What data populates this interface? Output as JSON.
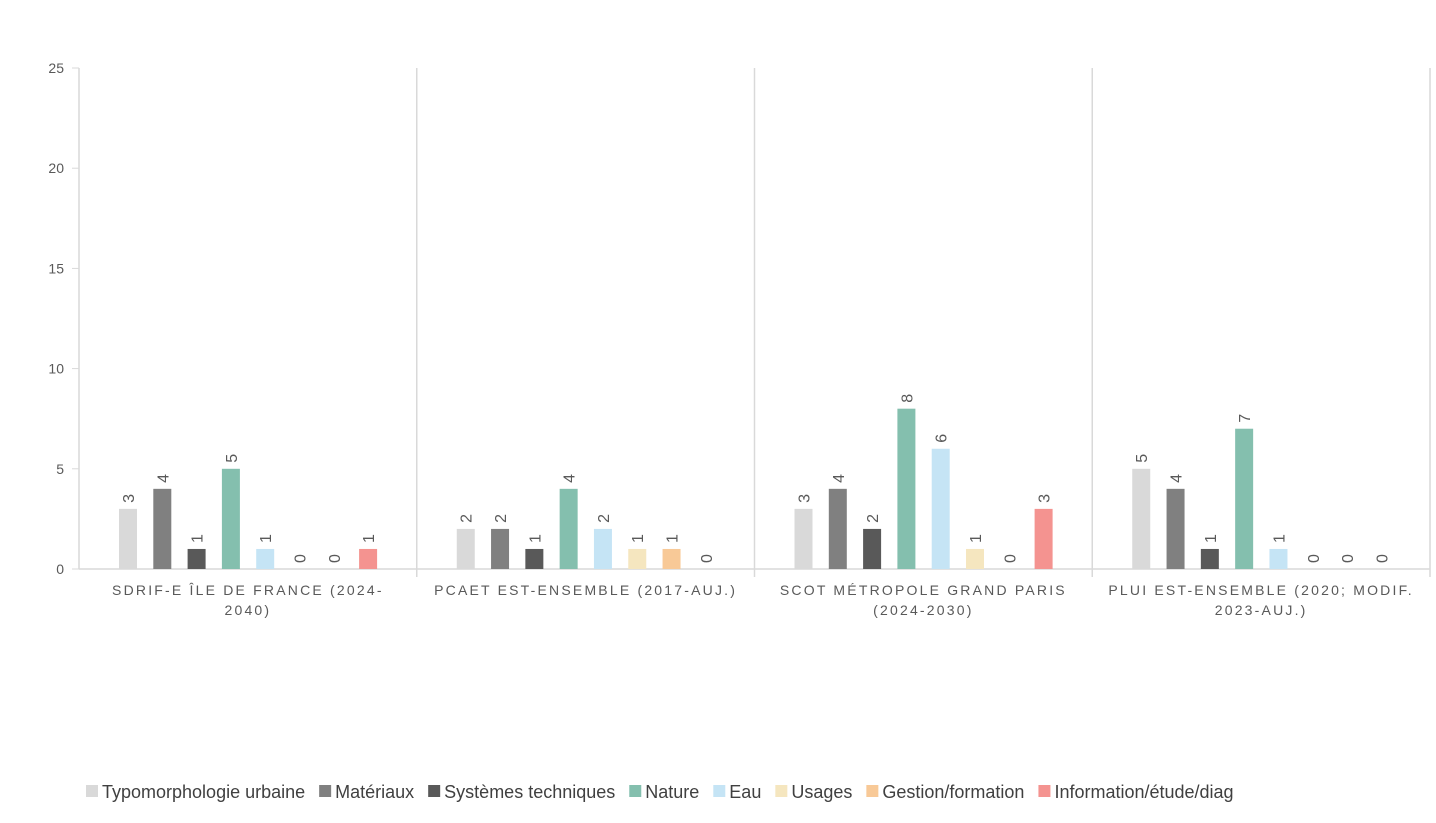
{
  "chart_data": {
    "type": "bar",
    "categories": [
      [
        "SDRIF-E ÎLE DE FRANCE (2024-",
        "2040)"
      ],
      [
        "PCAET EST-ENSEMBLE (2017-AUJ.)"
      ],
      [
        "SCOT MÉTROPOLE GRAND PARIS",
        "(2024-2030)"
      ],
      [
        "PLUI EST-ENSEMBLE (2020; MODIF.",
        "2023-AUJ.)"
      ]
    ],
    "series": [
      {
        "name": "Typomorphologie urbaine",
        "color": "#d9d9d9",
        "values": [
          3,
          2,
          3,
          5
        ]
      },
      {
        "name": "Matériaux",
        "color": "#808080",
        "values": [
          4,
          2,
          4,
          4
        ]
      },
      {
        "name": "Systèmes techniques",
        "color": "#595959",
        "values": [
          1,
          1,
          2,
          1
        ]
      },
      {
        "name": "Nature",
        "color": "#84bfae",
        "values": [
          5,
          4,
          8,
          7
        ]
      },
      {
        "name": "Eau",
        "color": "#c5e4f5",
        "values": [
          1,
          2,
          6,
          1
        ]
      },
      {
        "name": "Usages",
        "color": "#f5e6bf",
        "values": [
          0,
          1,
          1,
          0
        ]
      },
      {
        "name": "Gestion/formation",
        "color": "#f8c997",
        "values": [
          0,
          1,
          0,
          0
        ]
      },
      {
        "name": "Information/étude/diag",
        "color": "#f49390",
        "values": [
          1,
          0,
          3,
          0
        ]
      }
    ],
    "yticks": [
      "0",
      "5",
      "10",
      "15",
      "20",
      "25"
    ],
    "ylim": [
      0,
      25
    ],
    "title": "",
    "xlabel": "",
    "ylabel": "",
    "grid": false,
    "legend": "bottom",
    "data_labels": true
  }
}
